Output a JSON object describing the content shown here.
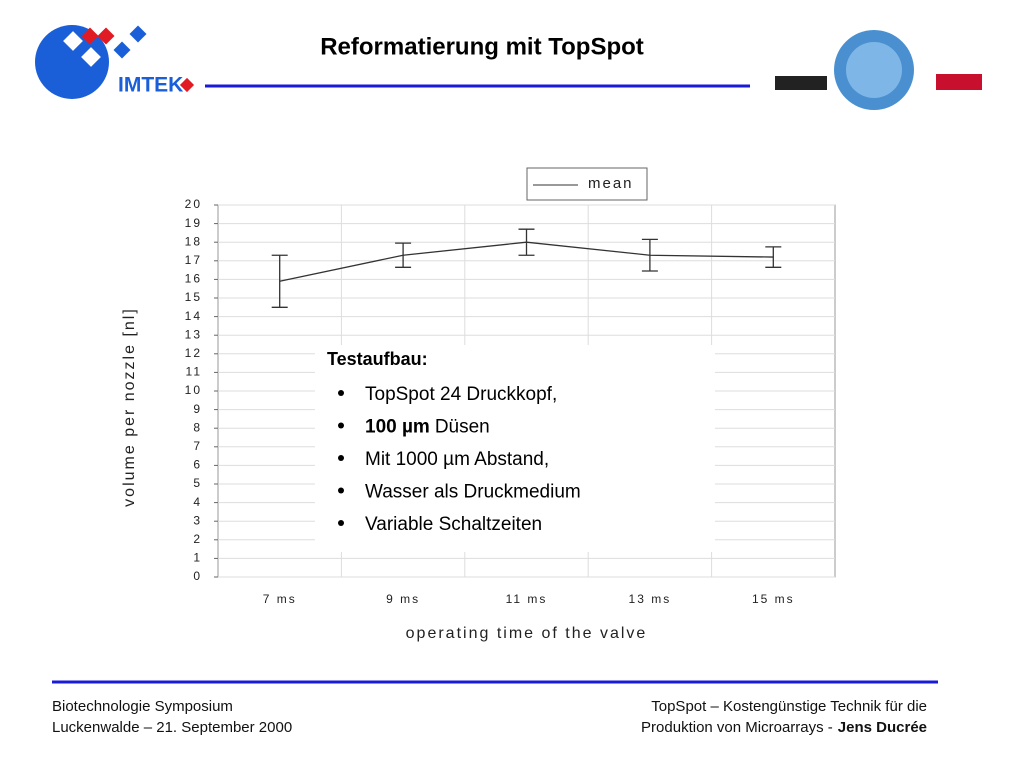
{
  "title": "Reformatierung mit TopSpot",
  "logo_text": "IMTEK",
  "chart_data": {
    "type": "line",
    "categories": [
      "7 ms",
      "9 ms",
      "11 ms",
      "13 ms",
      "15 ms"
    ],
    "series": [
      {
        "name": "mean",
        "color": "#333333",
        "values": [
          15.9,
          17.3,
          18.0,
          17.3,
          17.2
        ],
        "errors": [
          1.4,
          0.65,
          0.7,
          0.85,
          0.55
        ]
      }
    ],
    "ylim": [
      0,
      20
    ],
    "yticks": [
      0,
      1,
      2,
      3,
      4,
      5,
      6,
      7,
      8,
      9,
      10,
      11,
      12,
      13,
      14,
      15,
      16,
      17,
      18,
      19,
      20
    ],
    "ylabel": "volume per nozzle [nl]",
    "xlabel": "operating time of the valve",
    "grid": true
  },
  "textbox": {
    "heading": "Testaufbau:",
    "bullets": [
      {
        "text": "TopSpot 24 Druckkopf,"
      },
      {
        "bold": "100 µm",
        "text": "Düsen"
      },
      {
        "text": "Mit 1000 µm Abstand,"
      },
      {
        "text": "Wasser als Druckmedium"
      },
      {
        "text": "Variable Schaltzeiten"
      }
    ]
  },
  "footer": {
    "left": [
      "Biotechnologie Symposium",
      "Luckenwalde – 21. September 2000"
    ],
    "right": [
      {
        "text": "TopSpot – Kostengünstige Technik für die"
      },
      {
        "text": "Produktion von Microarrays -",
        "bold": "Jens Ducrée"
      }
    ]
  }
}
